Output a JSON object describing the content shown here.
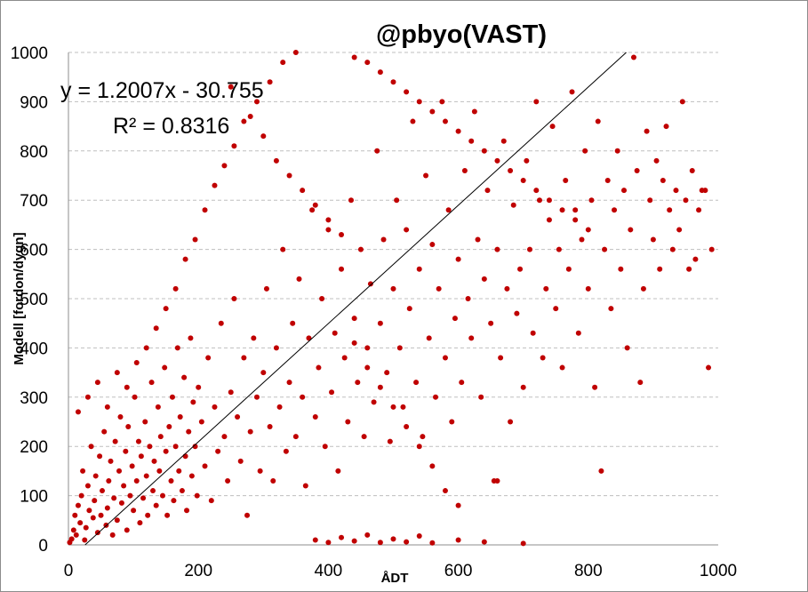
{
  "chart_data": {
    "type": "scatter",
    "title": "@pbyo(VAST)",
    "xlabel": "ÅDT",
    "ylabel": "Modell [fordon/dygn]",
    "xlim": [
      0,
      1000
    ],
    "ylim": [
      0,
      1000
    ],
    "xticks": [
      "0",
      "200",
      "400",
      "600",
      "800",
      "1000"
    ],
    "yticks": [
      "0",
      "100",
      "200",
      "300",
      "400",
      "500",
      "600",
      "700",
      "800",
      "900",
      "1000"
    ],
    "grid": "horizontal dashed",
    "marker_color": "#c00000",
    "trendline": {
      "type": "linear",
      "slope": 1.2007,
      "intercept": -30.755,
      "equation_label": "y = 1.2007x - 30.755",
      "r2_label": "R² = 0.8316"
    },
    "series": [
      {
        "points": [
          [
            2,
            5
          ],
          [
            5,
            12
          ],
          [
            8,
            30
          ],
          [
            10,
            60
          ],
          [
            12,
            20
          ],
          [
            15,
            80
          ],
          [
            18,
            45
          ],
          [
            20,
            100
          ],
          [
            22,
            150
          ],
          [
            25,
            10
          ],
          [
            27,
            35
          ],
          [
            30,
            120
          ],
          [
            32,
            70
          ],
          [
            35,
            200
          ],
          [
            38,
            55
          ],
          [
            40,
            90
          ],
          [
            42,
            140
          ],
          [
            45,
            25
          ],
          [
            48,
            180
          ],
          [
            50,
            60
          ],
          [
            52,
            110
          ],
          [
            55,
            230
          ],
          [
            58,
            40
          ],
          [
            60,
            75
          ],
          [
            62,
            130
          ],
          [
            65,
            170
          ],
          [
            68,
            20
          ],
          [
            70,
            95
          ],
          [
            72,
            210
          ],
          [
            75,
            50
          ],
          [
            78,
            150
          ],
          [
            80,
            260
          ],
          [
            82,
            85
          ],
          [
            85,
            120
          ],
          [
            88,
            190
          ],
          [
            90,
            30
          ],
          [
            92,
            240
          ],
          [
            95,
            100
          ],
          [
            98,
            160
          ],
          [
            100,
            70
          ],
          [
            102,
            300
          ],
          [
            105,
            130
          ],
          [
            108,
            210
          ],
          [
            110,
            45
          ],
          [
            112,
            180
          ],
          [
            115,
            95
          ],
          [
            118,
            250
          ],
          [
            120,
            140
          ],
          [
            122,
            60
          ],
          [
            125,
            200
          ],
          [
            128,
            330
          ],
          [
            130,
            110
          ],
          [
            132,
            170
          ],
          [
            135,
            80
          ],
          [
            138,
            280
          ],
          [
            140,
            150
          ],
          [
            142,
            220
          ],
          [
            145,
            100
          ],
          [
            148,
            360
          ],
          [
            150,
            190
          ],
          [
            152,
            60
          ],
          [
            155,
            240
          ],
          [
            158,
            130
          ],
          [
            160,
            300
          ],
          [
            162,
            90
          ],
          [
            165,
            200
          ],
          [
            168,
            400
          ],
          [
            170,
            150
          ],
          [
            172,
            260
          ],
          [
            175,
            110
          ],
          [
            178,
            340
          ],
          [
            180,
            180
          ],
          [
            182,
            70
          ],
          [
            185,
            230
          ],
          [
            188,
            420
          ],
          [
            190,
            140
          ],
          [
            192,
            290
          ],
          [
            195,
            200
          ],
          [
            198,
            100
          ],
          [
            200,
            320
          ],
          [
            205,
            250
          ],
          [
            210,
            160
          ],
          [
            215,
            380
          ],
          [
            220,
            90
          ],
          [
            225,
            280
          ],
          [
            230,
            190
          ],
          [
            235,
            450
          ],
          [
            240,
            220
          ],
          [
            245,
            130
          ],
          [
            250,
            310
          ],
          [
            255,
            500
          ],
          [
            260,
            260
          ],
          [
            265,
            170
          ],
          [
            270,
            380
          ],
          [
            275,
            60
          ],
          [
            280,
            230
          ],
          [
            285,
            420
          ],
          [
            290,
            300
          ],
          [
            295,
            150
          ],
          [
            300,
            350
          ],
          [
            305,
            520
          ],
          [
            310,
            240
          ],
          [
            315,
            130
          ],
          [
            320,
            400
          ],
          [
            325,
            280
          ],
          [
            330,
            600
          ],
          [
            335,
            190
          ],
          [
            340,
            330
          ],
          [
            345,
            450
          ],
          [
            350,
            220
          ],
          [
            355,
            540
          ],
          [
            360,
            300
          ],
          [
            365,
            120
          ],
          [
            370,
            420
          ],
          [
            375,
            680
          ],
          [
            380,
            260
          ],
          [
            385,
            360
          ],
          [
            390,
            500
          ],
          [
            395,
            200
          ],
          [
            400,
            640
          ],
          [
            405,
            310
          ],
          [
            410,
            430
          ],
          [
            415,
            150
          ],
          [
            420,
            560
          ],
          [
            425,
            380
          ],
          [
            430,
            250
          ],
          [
            435,
            700
          ],
          [
            440,
            460
          ],
          [
            445,
            330
          ],
          [
            450,
            600
          ],
          [
            455,
            220
          ],
          [
            460,
            400
          ],
          [
            465,
            530
          ],
          [
            470,
            290
          ],
          [
            475,
            800
          ],
          [
            480,
            450
          ],
          [
            485,
            620
          ],
          [
            490,
            350
          ],
          [
            495,
            210
          ],
          [
            500,
            520
          ],
          [
            505,
            700
          ],
          [
            510,
            400
          ],
          [
            515,
            280
          ],
          [
            520,
            640
          ],
          [
            525,
            480
          ],
          [
            530,
            860
          ],
          [
            535,
            330
          ],
          [
            540,
            560
          ],
          [
            545,
            220
          ],
          [
            550,
            750
          ],
          [
            555,
            420
          ],
          [
            560,
            610
          ],
          [
            565,
            300
          ],
          [
            570,
            520
          ],
          [
            575,
            900
          ],
          [
            580,
            380
          ],
          [
            585,
            680
          ],
          [
            590,
            250
          ],
          [
            595,
            460
          ],
          [
            600,
            580
          ],
          [
            605,
            330
          ],
          [
            610,
            760
          ],
          [
            615,
            500
          ],
          [
            620,
            420
          ],
          [
            625,
            880
          ],
          [
            630,
            620
          ],
          [
            635,
            300
          ],
          [
            640,
            540
          ],
          [
            645,
            720
          ],
          [
            650,
            450
          ],
          [
            655,
            130
          ],
          [
            660,
            600
          ],
          [
            665,
            380
          ],
          [
            670,
            820
          ],
          [
            675,
            520
          ],
          [
            680,
            250
          ],
          [
            685,
            690
          ],
          [
            690,
            470
          ],
          [
            695,
            560
          ],
          [
            700,
            320
          ],
          [
            705,
            780
          ],
          [
            710,
            600
          ],
          [
            715,
            430
          ],
          [
            720,
            900
          ],
          [
            725,
            700
          ],
          [
            730,
            380
          ],
          [
            735,
            520
          ],
          [
            740,
            660
          ],
          [
            745,
            850
          ],
          [
            750,
            480
          ],
          [
            755,
            600
          ],
          [
            760,
            360
          ],
          [
            765,
            740
          ],
          [
            770,
            560
          ],
          [
            775,
            920
          ],
          [
            780,
            680
          ],
          [
            785,
            430
          ],
          [
            790,
            620
          ],
          [
            795,
            800
          ],
          [
            800,
            520
          ],
          [
            805,
            700
          ],
          [
            810,
            320
          ],
          [
            815,
            860
          ],
          [
            820,
            150
          ],
          [
            825,
            600
          ],
          [
            830,
            740
          ],
          [
            835,
            480
          ],
          [
            840,
            680
          ],
          [
            845,
            800
          ],
          [
            850,
            560
          ],
          [
            855,
            720
          ],
          [
            860,
            400
          ],
          [
            865,
            640
          ],
          [
            870,
            990
          ],
          [
            875,
            760
          ],
          [
            880,
            330
          ],
          [
            885,
            520
          ],
          [
            890,
            840
          ],
          [
            895,
            700
          ],
          [
            900,
            620
          ],
          [
            905,
            780
          ],
          [
            910,
            560
          ],
          [
            915,
            740
          ],
          [
            920,
            850
          ],
          [
            925,
            680
          ],
          [
            930,
            600
          ],
          [
            935,
            720
          ],
          [
            940,
            640
          ],
          [
            945,
            900
          ],
          [
            950,
            700
          ],
          [
            955,
            560
          ],
          [
            960,
            760
          ],
          [
            965,
            580
          ],
          [
            970,
            680
          ],
          [
            975,
            720
          ],
          [
            980,
            720
          ],
          [
            985,
            360
          ],
          [
            990,
            600
          ],
          [
            15,
            270
          ],
          [
            30,
            300
          ],
          [
            45,
            330
          ],
          [
            60,
            280
          ],
          [
            75,
            350
          ],
          [
            90,
            320
          ],
          [
            105,
            370
          ],
          [
            120,
            400
          ],
          [
            135,
            440
          ],
          [
            150,
            480
          ],
          [
            165,
            520
          ],
          [
            180,
            580
          ],
          [
            195,
            620
          ],
          [
            210,
            680
          ],
          [
            225,
            730
          ],
          [
            240,
            770
          ],
          [
            255,
            810
          ],
          [
            270,
            860
          ],
          [
            290,
            900
          ],
          [
            310,
            940
          ],
          [
            330,
            980
          ],
          [
            350,
            1000
          ],
          [
            250,
            930
          ],
          [
            280,
            870
          ],
          [
            300,
            830
          ],
          [
            320,
            780
          ],
          [
            340,
            750
          ],
          [
            360,
            720
          ],
          [
            380,
            690
          ],
          [
            400,
            660
          ],
          [
            420,
            630
          ],
          [
            440,
            990
          ],
          [
            460,
            980
          ],
          [
            480,
            960
          ],
          [
            500,
            940
          ],
          [
            520,
            920
          ],
          [
            540,
            900
          ],
          [
            560,
            880
          ],
          [
            580,
            860
          ],
          [
            600,
            840
          ],
          [
            620,
            820
          ],
          [
            640,
            800
          ],
          [
            660,
            780
          ],
          [
            680,
            760
          ],
          [
            700,
            740
          ],
          [
            720,
            720
          ],
          [
            740,
            700
          ],
          [
            760,
            680
          ],
          [
            780,
            660
          ],
          [
            800,
            640
          ],
          [
            380,
            10
          ],
          [
            400,
            5
          ],
          [
            420,
            15
          ],
          [
            440,
            8
          ],
          [
            460,
            20
          ],
          [
            480,
            5
          ],
          [
            500,
            12
          ],
          [
            520,
            6
          ],
          [
            540,
            18
          ],
          [
            560,
            4
          ],
          [
            600,
            10
          ],
          [
            640,
            6
          ],
          [
            700,
            3
          ],
          [
            660,
            130
          ],
          [
            600,
            80
          ],
          [
            580,
            110
          ],
          [
            560,
            160
          ],
          [
            540,
            200
          ],
          [
            520,
            240
          ],
          [
            500,
            280
          ],
          [
            480,
            320
          ],
          [
            460,
            360
          ],
          [
            440,
            410
          ]
        ]
      }
    ]
  }
}
